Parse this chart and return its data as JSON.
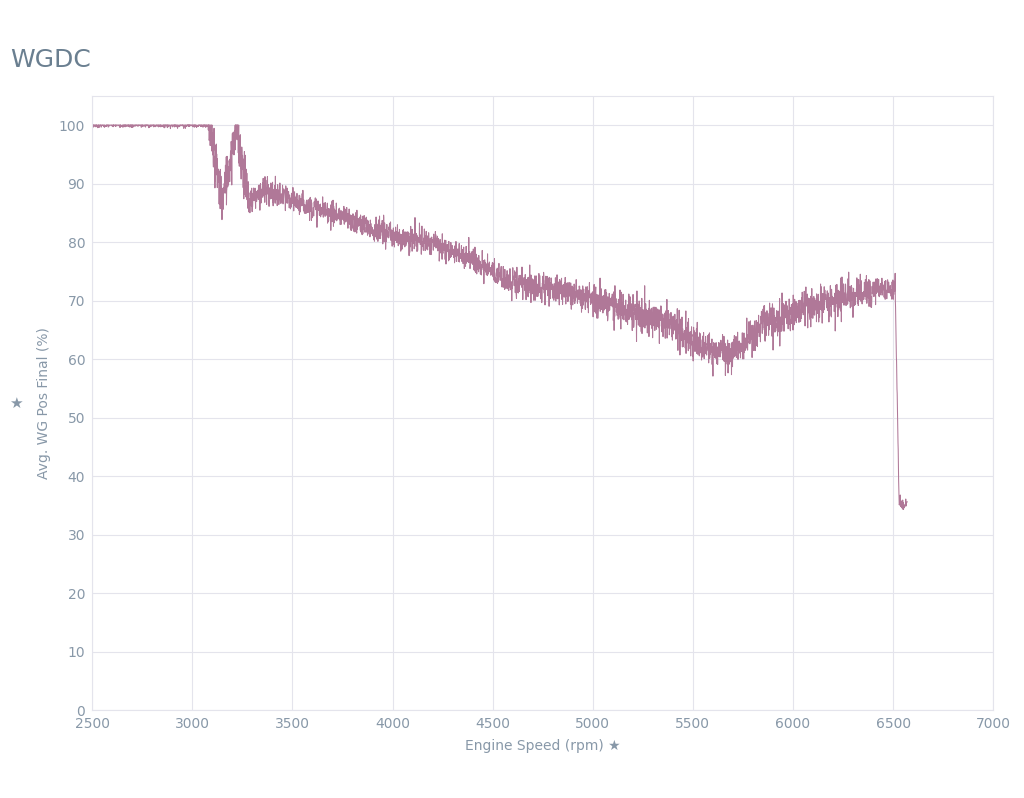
{
  "title": "WGDC",
  "xlabel": "Engine Speed (rpm) ★",
  "ylabel": "Avg. WG Pos Final (%)",
  "ylabel_star": "★",
  "xlim": [
    2500,
    7000
  ],
  "ylim": [
    0,
    105
  ],
  "yticks": [
    0,
    10,
    20,
    30,
    40,
    50,
    60,
    70,
    80,
    90,
    100
  ],
  "xticks": [
    2500,
    3000,
    3500,
    4000,
    4500,
    5000,
    5500,
    6000,
    6500,
    7000
  ],
  "line_color": "#b07898",
  "background_color": "#ffffff",
  "grid_color": "#e4e4ec",
  "title_color": "#6a7f90",
  "axis_color": "#8898a8",
  "tick_color": "#8898a8",
  "title_fontsize": 18,
  "axis_fontsize": 10,
  "tick_fontsize": 10
}
